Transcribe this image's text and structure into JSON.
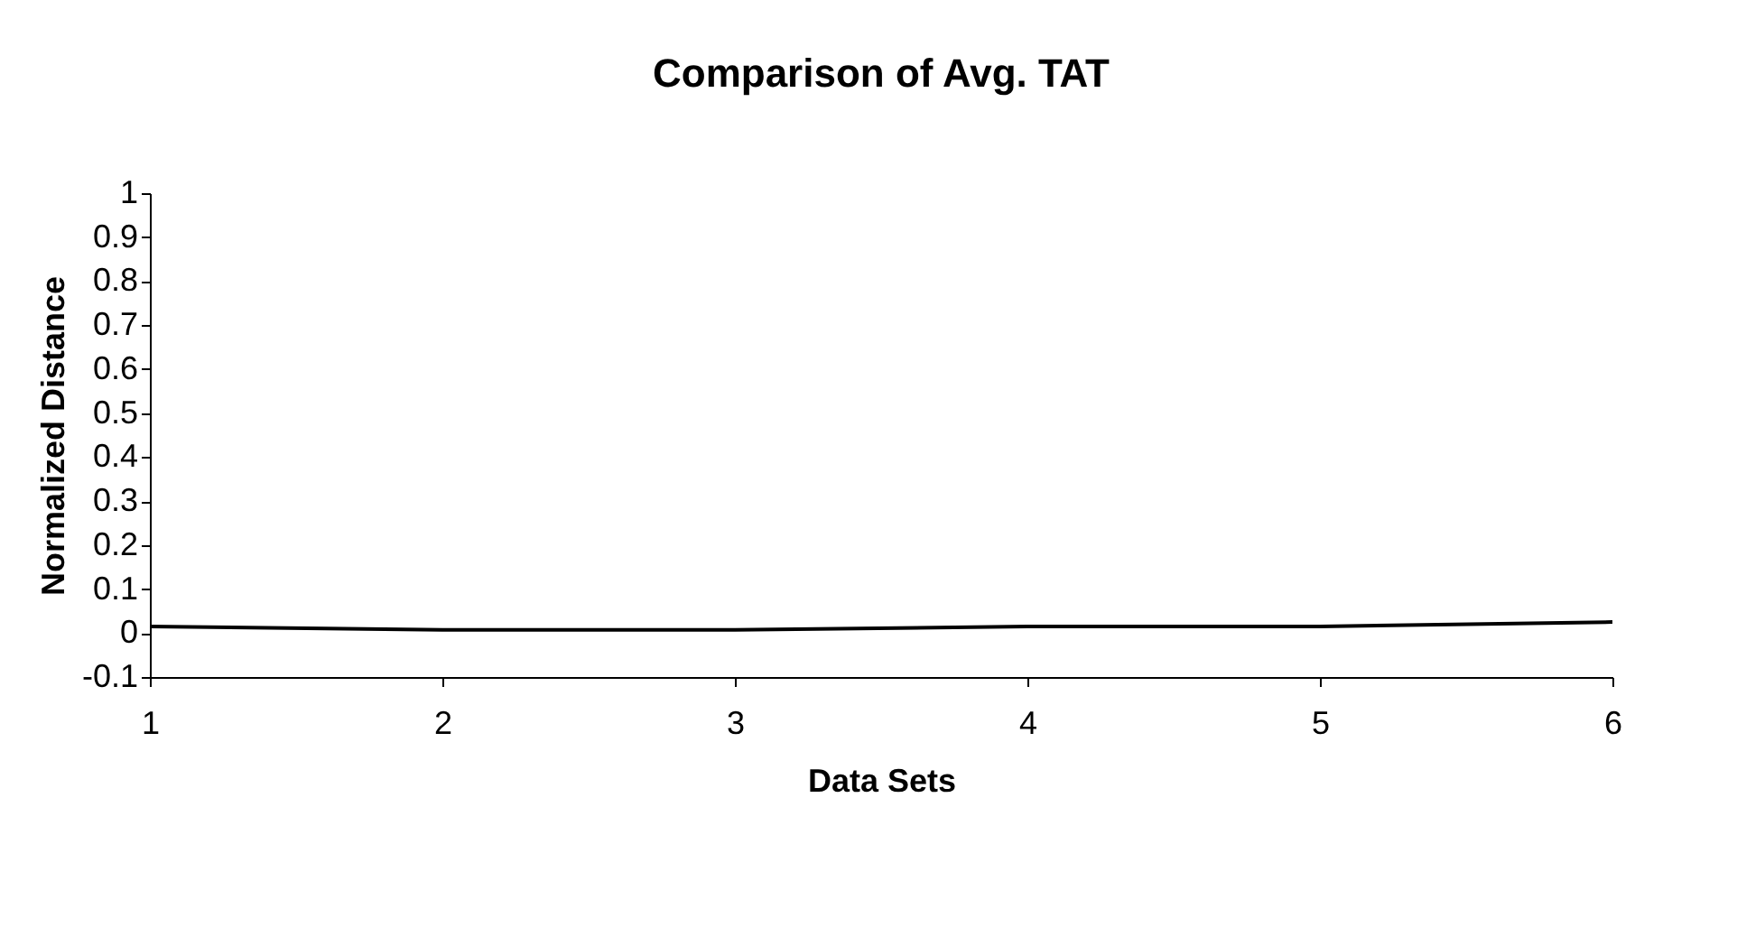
{
  "chart_data": {
    "type": "line",
    "title": "Comparison of Avg. TAT",
    "xlabel": "Data Sets",
    "ylabel": "Normalized Distance",
    "x": [
      1,
      2,
      3,
      4,
      5,
      6
    ],
    "series": [
      {
        "color": "#000000",
        "values": [
          0.015,
          0.007,
          0.007,
          0.015,
          0.015,
          0.025
        ]
      }
    ],
    "xlim": [
      1,
      6
    ],
    "xticks": [
      1,
      2,
      3,
      4,
      5,
      6
    ],
    "ylim": [
      -0.1,
      1
    ],
    "yticks": [
      -0.1,
      0,
      0.1,
      0.2,
      0.3,
      0.4,
      0.5,
      0.6,
      0.7,
      0.8,
      0.9,
      1
    ],
    "grid": false,
    "legend": false,
    "marker": "none",
    "line_style": "solid"
  }
}
